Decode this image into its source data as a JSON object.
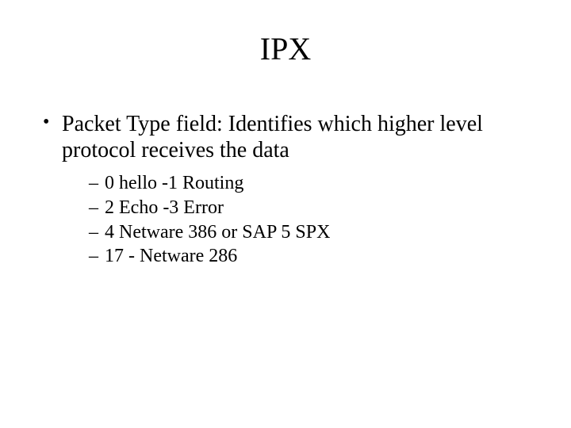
{
  "slide": {
    "title": "IPX",
    "title_fontsize": 40,
    "body_fontsize_l1": 28,
    "body_fontsize_l2": 24,
    "font_family": "Times New Roman",
    "background_color": "#ffffff",
    "text_color": "#000000",
    "bullet": {
      "text": "Packet Type field: Identifies which higher level protocol receives the data",
      "sub": [
        "0 hello   -1 Routing",
        "2 Echo   -3 Error",
        "4 Netware 386 or SAP 5 SPX",
        "17 - Netware 286"
      ]
    }
  }
}
